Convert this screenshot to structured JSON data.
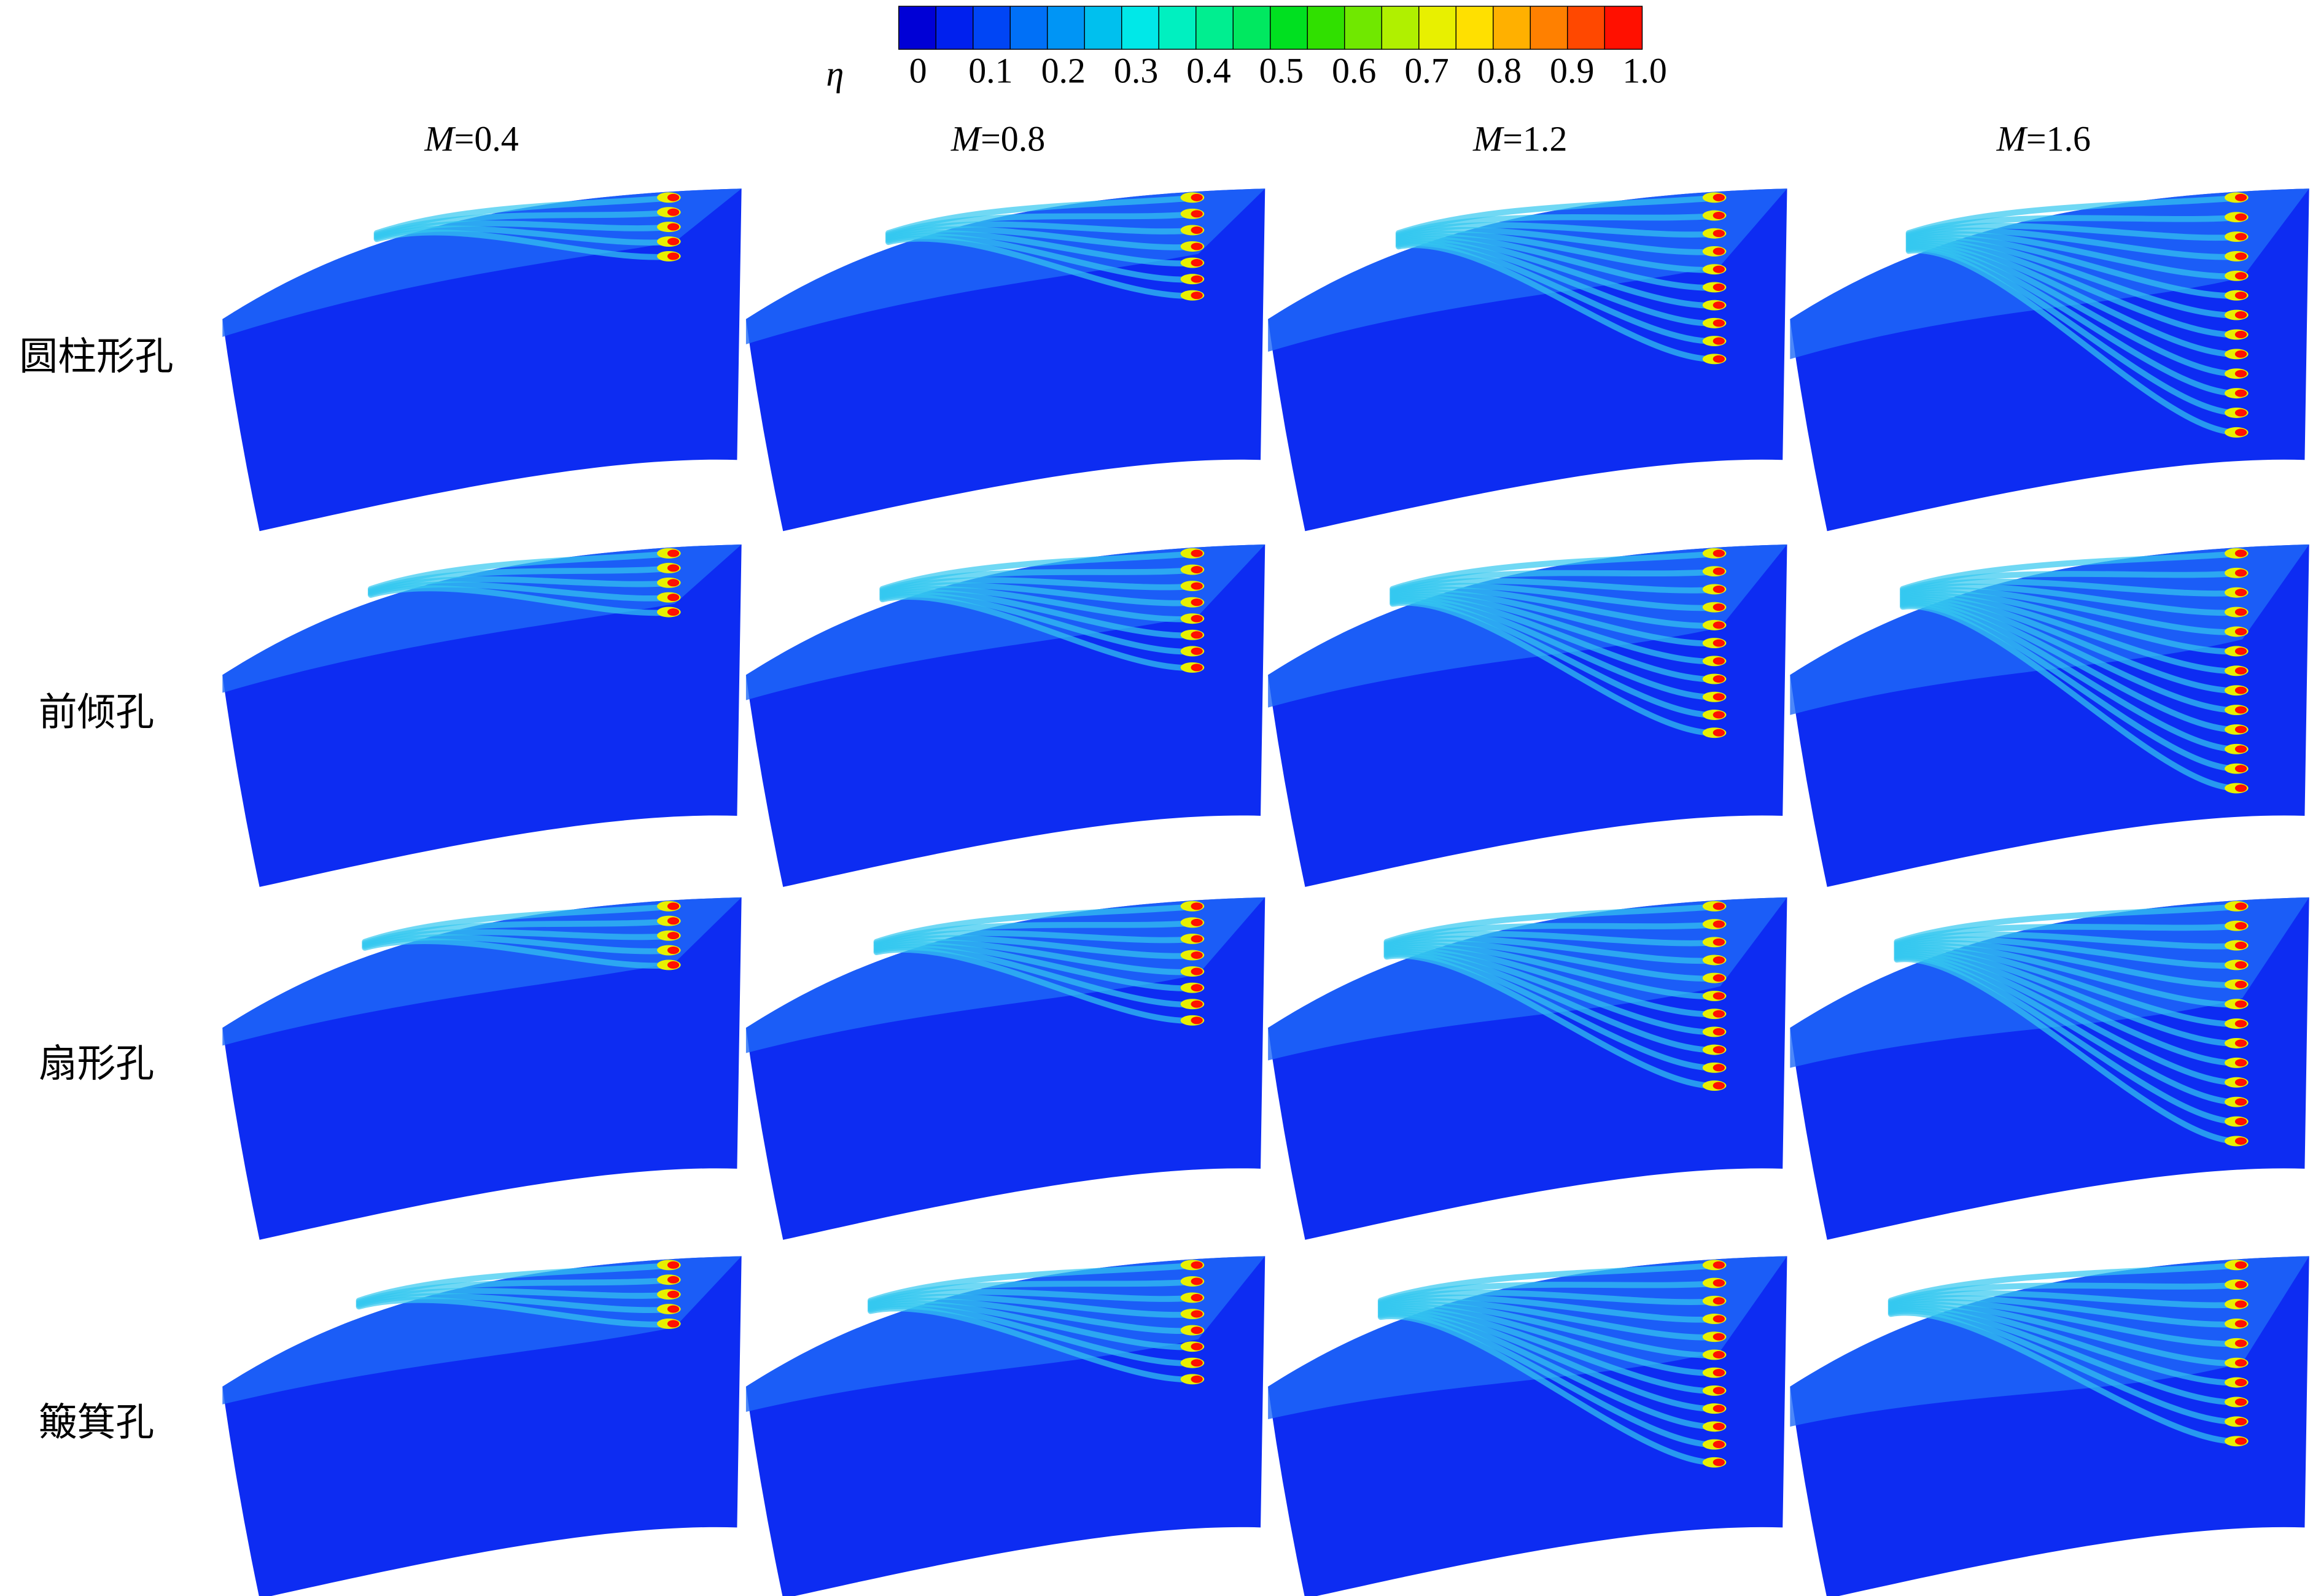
{
  "colorbar": {
    "symbol": "η",
    "ticks": [
      "0",
      "0.1",
      "0.2",
      "0.3",
      "0.4",
      "0.5",
      "0.6",
      "0.7",
      "0.8",
      "0.9",
      "1.0"
    ],
    "colors": [
      "#0000d6",
      "#0020ee",
      "#0045f5",
      "#0070f7",
      "#0095f5",
      "#00c0ee",
      "#00e8e8",
      "#00f0c0",
      "#00ee90",
      "#00e860",
      "#00e020",
      "#30e000",
      "#70e800",
      "#b0f000",
      "#e8f000",
      "#ffe000",
      "#ffb000",
      "#ff8000",
      "#ff4800",
      "#ff1000"
    ]
  },
  "columns": [
    {
      "var": "M",
      "text": "=0.4"
    },
    {
      "var": "M",
      "text": "=0.8"
    },
    {
      "var": "M",
      "text": "=1.2"
    },
    {
      "var": "M",
      "text": "=1.6"
    }
  ],
  "rows": [
    "圆柱形孔",
    "前倾孔",
    "扇形孔",
    "簸箕孔"
  ]
}
